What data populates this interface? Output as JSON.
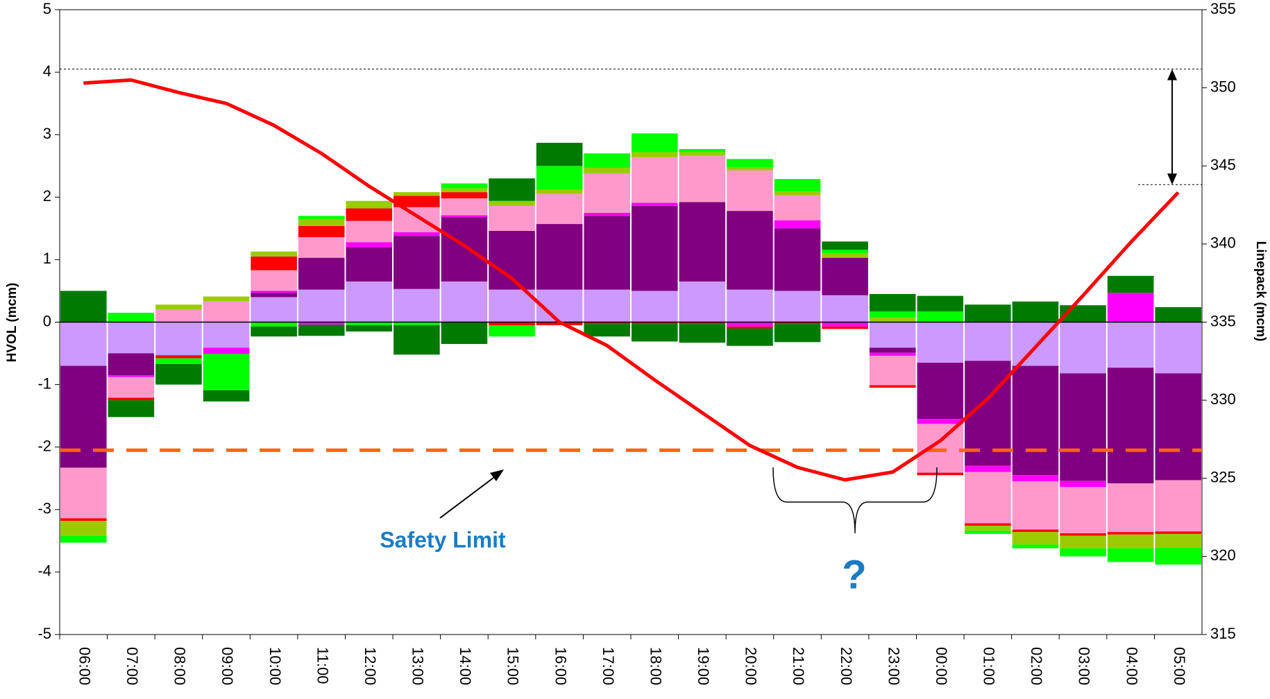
{
  "chart_data": {
    "type": "stacked_bar_line",
    "y_label": "HVOL (mcm)",
    "y2_label": "Linepack (mcm)",
    "categories": [
      "06:00",
      "07:00",
      "08:00",
      "09:00",
      "10:00",
      "11:00",
      "12:00",
      "13:00",
      "14:00",
      "15:00",
      "16:00",
      "17:00",
      "18:00",
      "19:00",
      "20:00",
      "21:00",
      "22:00",
      "23:00",
      "00:00",
      "01:00",
      "02:00",
      "03:00",
      "04:00",
      "05:00"
    ],
    "series": [
      {
        "color": "#cc99ff",
        "values": [
          -0.7,
          -0.5,
          -0.53,
          -0.41,
          0.4,
          0.52,
          0.65,
          0.53,
          0.65,
          0.52,
          0.52,
          0.52,
          0.5,
          0.65,
          0.52,
          0.5,
          0.43,
          -0.41,
          -0.65,
          -0.62,
          -0.7,
          -0.82,
          -0.73,
          -0.82
        ]
      },
      {
        "color": "#800080",
        "values": [
          -1.63,
          -0.35,
          null,
          null,
          0.07,
          0.51,
          0.55,
          0.85,
          1.03,
          0.94,
          1.05,
          1.18,
          1.36,
          1.27,
          1.26,
          1.0,
          0.6,
          -0.08,
          -0.9,
          -1.68,
          -1.75,
          -1.72,
          -1.85,
          -1.71
        ]
      },
      {
        "color": "#ff00ff",
        "values": [
          null,
          -0.03,
          null,
          -0.1,
          0.03,
          -0.04,
          0.08,
          0.06,
          0.03,
          null,
          null,
          0.05,
          0.05,
          null,
          -0.07,
          0.13,
          -0.07,
          -0.05,
          -0.08,
          -0.1,
          -0.1,
          -0.1,
          0.47,
          null
        ]
      },
      {
        "color": "#ff99cc",
        "values": [
          -0.81,
          -0.33,
          0.2,
          0.33,
          0.33,
          0.33,
          0.34,
          0.4,
          0.27,
          0.4,
          0.48,
          0.63,
          0.73,
          0.74,
          0.65,
          0.4,
          null,
          -0.47,
          -0.78,
          -0.82,
          -0.77,
          -0.74,
          -0.78,
          -0.82
        ]
      },
      {
        "color": "#ff0000",
        "values": [
          -0.04,
          -0.04,
          -0.05,
          null,
          0.22,
          0.18,
          0.2,
          0.18,
          0.1,
          -0.05,
          -0.05,
          -0.03,
          -0.03,
          -0.03,
          -0.03,
          -0.03,
          -0.04,
          -0.04,
          -0.04,
          -0.04,
          -0.04,
          -0.04,
          -0.04,
          -0.04
        ]
      },
      {
        "color": "#99cc00",
        "values": [
          -0.24,
          null,
          0.08,
          0.08,
          0.08,
          0.1,
          0.12,
          0.06,
          0.06,
          0.08,
          0.07,
          0.09,
          0.08,
          0.06,
          0.05,
          0.06,
          0.07,
          0.07,
          null,
          -0.08,
          -0.2,
          -0.2,
          -0.22,
          -0.22
        ]
      },
      {
        "color": "#00ff00",
        "values": [
          -0.11,
          0.15,
          -0.09,
          -0.58,
          -0.07,
          0.06,
          -0.05,
          -0.05,
          0.08,
          -0.18,
          0.38,
          0.23,
          0.3,
          0.05,
          0.13,
          0.2,
          0.06,
          0.1,
          0.17,
          -0.05,
          -0.06,
          -0.13,
          -0.22,
          -0.27
        ]
      },
      {
        "color": "#007a00",
        "values": [
          0.5,
          -0.27,
          -0.33,
          -0.18,
          -0.16,
          -0.18,
          -0.1,
          -0.47,
          -0.35,
          0.36,
          0.37,
          -0.2,
          -0.28,
          -0.3,
          -0.28,
          -0.29,
          0.13,
          0.28,
          0.25,
          0.28,
          0.33,
          0.27,
          0.27,
          0.24
        ]
      }
    ],
    "line": {
      "color": "#ff0000",
      "axis": "y2",
      "values": [
        350.3,
        350.5,
        349.7,
        349.0,
        347.6,
        345.8,
        343.7,
        341.8,
        339.9,
        337.8,
        335.0,
        333.5,
        331.3,
        329.2,
        327.1,
        325.7,
        324.9,
        325.4,
        327.4,
        330.1,
        333.4,
        336.7,
        340.1,
        343.3
      ]
    },
    "safety_limit": {
      "value": 326.8,
      "axis": "y2",
      "color": "#ff6600",
      "label": "Safety Limit"
    },
    "reference_lines": [
      351.2,
      343.8
    ],
    "question_annotation": "?",
    "ylim": [
      -5,
      5
    ],
    "yticks": [
      -5,
      -4,
      -3,
      -2,
      -1,
      0,
      1,
      2,
      3,
      4,
      5
    ],
    "y2lim": [
      315,
      355
    ],
    "y2ticks": [
      315,
      320,
      325,
      330,
      335,
      340,
      345,
      350,
      355
    ],
    "grid": false
  }
}
